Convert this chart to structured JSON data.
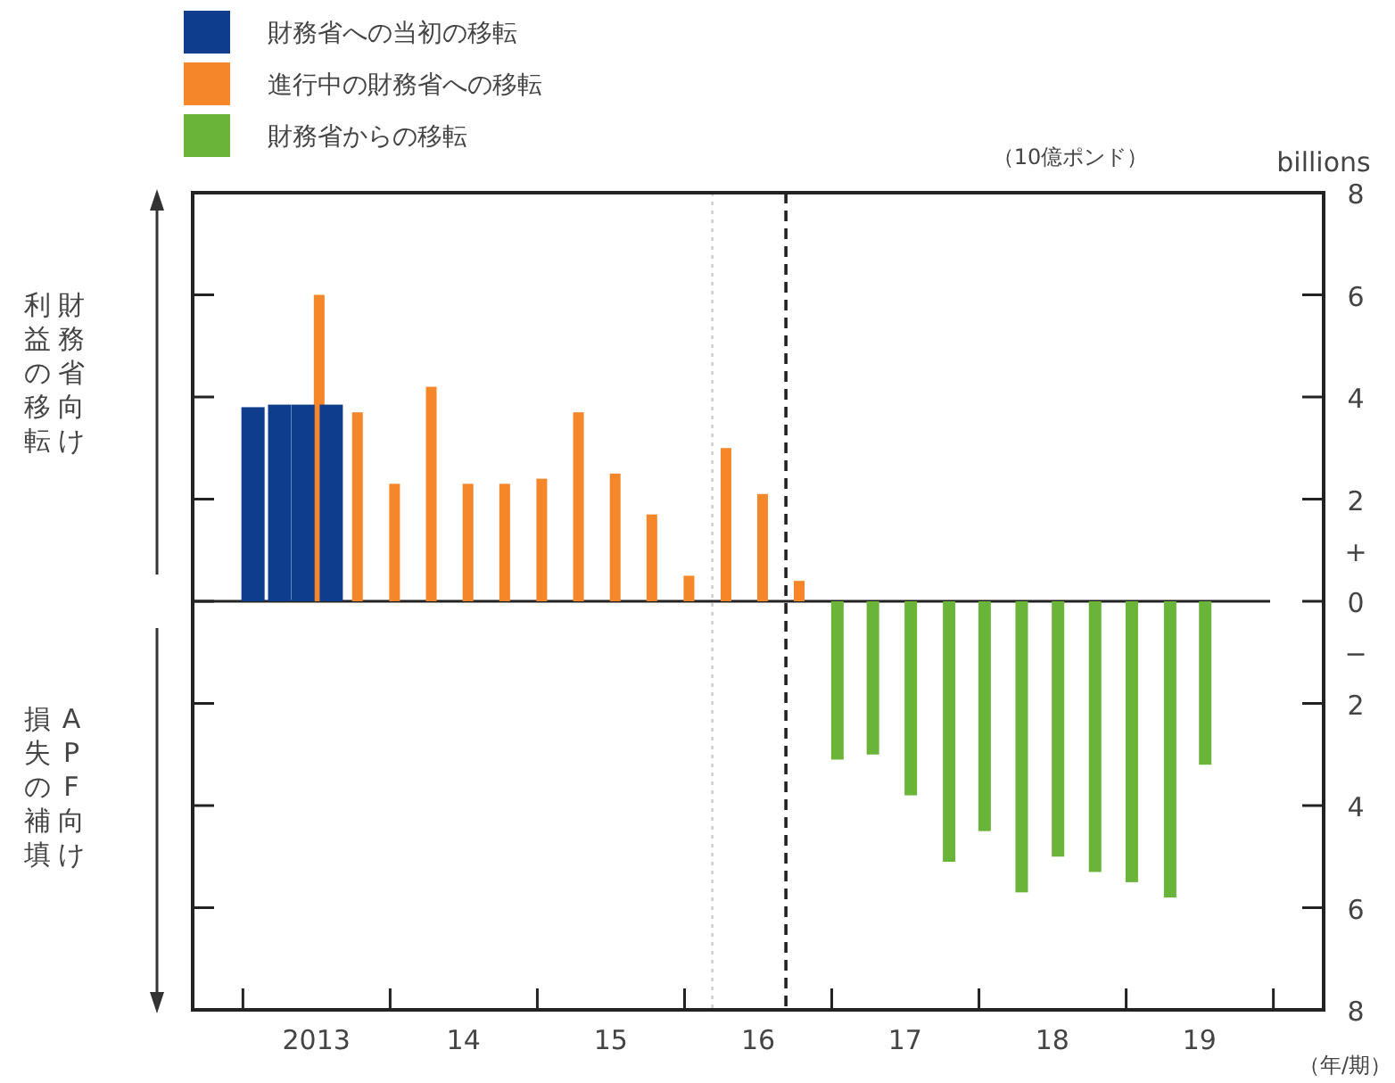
{
  "chart_data": {
    "type": "bar",
    "xlabel": "（年/期）",
    "ylabel": "billions",
    "annotations": [
      "（10億ポンド）",
      "財務省向け",
      "利益の移転",
      "APF向け",
      "損失の補填",
      "+",
      "−"
    ],
    "series": [
      {
        "name": "財務省への当初の移転",
        "color": "#0d3d8c",
        "x": [
          "2013-01-26",
          "2013-04-02",
          "2013-05-30",
          "2013-08-08"
        ],
        "values": [
          3.8,
          3.85,
          3.85,
          3.85
        ]
      },
      {
        "name": "進行中の財務省への移転",
        "color": "#f5862a",
        "x": [
          "2013-07-09",
          "2013-10-12",
          "2014-01-12",
          "2014-04-13",
          "2014-07-13",
          "2014-10-12",
          "2015-01-12",
          "2015-04-13",
          "2015-07-13",
          "2015-10-12",
          "2016-01-12",
          "2016-04-13",
          "2016-07-13",
          "2016-10-12"
        ],
        "values": [
          6.0,
          3.7,
          2.3,
          4.2,
          2.3,
          2.3,
          2.4,
          3.7,
          2.5,
          1.7,
          0.5,
          3.0,
          2.1,
          0.4
        ]
      },
      {
        "name": "財務省からの移転",
        "color": "#6ab43a",
        "x": [
          "2017-01-15",
          "2017-04-13",
          "2017-07-16",
          "2017-10-19",
          "2018-01-15",
          "2018-04-17",
          "2018-07-16",
          "2018-10-16",
          "2019-01-15",
          "2019-04-20",
          "2019-07-16"
        ],
        "values": [
          -3.1,
          -3.0,
          -3.8,
          -5.1,
          -4.5,
          -5.7,
          -5.0,
          -5.3,
          -5.5,
          -5.8,
          -3.2
        ]
      }
    ],
    "xlim": [
      "2012-08-29",
      "2020-05-05"
    ],
    "xticks": [
      {
        "value": "2013-01-01",
        "label": null
      },
      {
        "value": "2013-07-02",
        "label": "2013"
      },
      {
        "value": "2014-01-01",
        "label": null
      },
      {
        "value": "2014-07-02",
        "label": "14"
      },
      {
        "value": "2015-01-01",
        "label": null
      },
      {
        "value": "2015-07-02",
        "label": "15"
      },
      {
        "value": "2016-01-01",
        "label": null
      },
      {
        "value": "2016-07-02",
        "label": "16"
      },
      {
        "value": "2017-01-01",
        "label": null
      },
      {
        "value": "2017-07-02",
        "label": "17"
      },
      {
        "value": "2018-01-01",
        "label": null
      },
      {
        "value": "2018-07-02",
        "label": "18"
      },
      {
        "value": "2019-01-01",
        "label": null
      },
      {
        "value": "2019-07-02",
        "label": "19"
      },
      {
        "value": "2020-01-01",
        "label": null
      }
    ],
    "ylim": [
      -8,
      8
    ],
    "yticks": [
      {
        "value": -8,
        "label": "8"
      },
      {
        "value": -6,
        "label": "6"
      },
      {
        "value": -4,
        "label": "4"
      },
      {
        "value": -2,
        "label": "2"
      },
      0,
      2,
      4,
      6,
      8
    ],
    "ref_lines": [
      {
        "axis": "y",
        "value": 0,
        "color": "#222222",
        "line_style": "solid"
      },
      {
        "axis": "x",
        "value": "2016-03-10",
        "color": "#cccccc",
        "line_style": "dotted"
      },
      {
        "axis": "x",
        "value": "2016-09-09",
        "color": "#222222",
        "line_style": "dashed"
      }
    ],
    "legend": "top left",
    "grid": false
  }
}
